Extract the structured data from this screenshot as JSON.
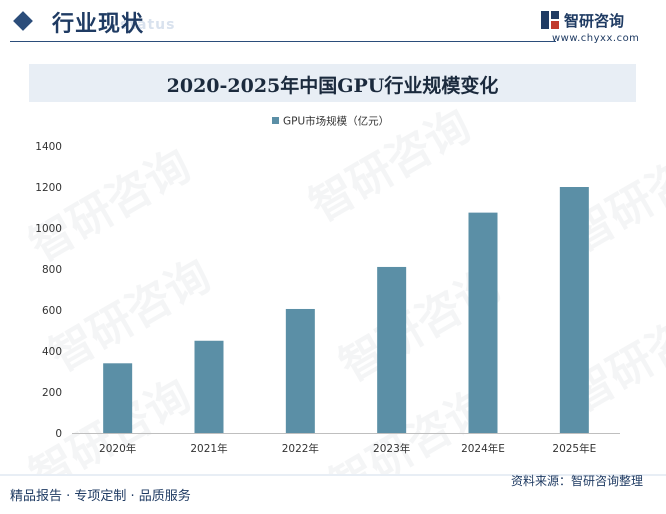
{
  "header": {
    "section_title": "行业现状",
    "section_subtitle": "status",
    "brand_name": "智研咨询",
    "brand_url": "www.chyxx.com"
  },
  "footer": {
    "left_text": "精品报告 · 专项定制 · 品质服务",
    "source_text": "资料来源：智研咨询整理"
  },
  "watermark_text": "智研咨询",
  "colors": {
    "bar": "#5b8fa6",
    "title_band": "#e8eef5",
    "accent": "#1f3b63"
  },
  "chart_data": {
    "type": "bar",
    "title": "2020-2025年中国GPU行业规模变化",
    "categories": [
      "2020年",
      "2021年",
      "2022年",
      "2023年",
      "2024年E",
      "2025年E"
    ],
    "series": [
      {
        "name": "GPU市场规模（亿元）",
        "values": [
          340,
          450,
          605,
          810,
          1075,
          1200
        ]
      }
    ],
    "ylim": [
      0,
      1400
    ],
    "yticks": [
      0,
      200,
      400,
      600,
      800,
      1000,
      1200,
      1400
    ],
    "xlabel": "",
    "ylabel": "",
    "legend_position": "top-center",
    "grid": false
  }
}
